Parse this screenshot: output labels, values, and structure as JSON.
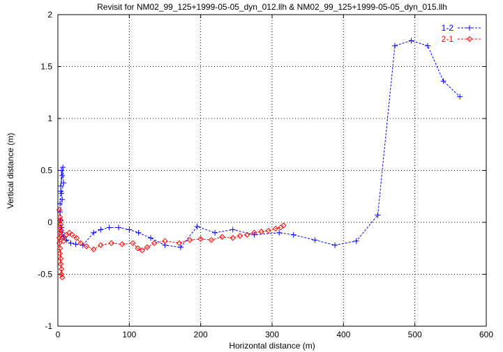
{
  "chart_data": {
    "type": "line",
    "title": "Revisit for NM02_99_125+1999-05-05_dyn_012.llh & NM02_99_125+1999-05-05_dyn_015.llh",
    "xlabel": "Horizontal distance (m)",
    "ylabel": "Vertical distance (m)",
    "xlim": [
      0,
      600
    ],
    "ylim": [
      -1,
      2
    ],
    "xticks": [
      0,
      100,
      200,
      300,
      400,
      500,
      600
    ],
    "yticks": [
      -1,
      -0.5,
      0,
      0.5,
      1,
      1.5,
      2
    ],
    "xtick_labels": [
      "0",
      "100",
      "200",
      "300",
      "400",
      "500",
      "600"
    ],
    "ytick_labels": [
      "-1",
      "-0.5",
      "0",
      "0.5",
      "1",
      "1.5",
      "2"
    ],
    "grid": true,
    "legend_position": "top-right",
    "series": [
      {
        "name": "1-2",
        "color": "#0000ff",
        "marker": "plus",
        "line": "dashed",
        "points": [
          [
            3,
            0.18
          ],
          [
            4,
            0.3
          ],
          [
            5,
            0.5
          ],
          [
            6,
            0.45
          ],
          [
            4,
            0.35
          ],
          [
            7,
            0.53
          ],
          [
            8,
            0.38
          ],
          [
            5,
            0.28
          ],
          [
            6,
            0.22
          ],
          [
            3,
            0.1
          ],
          [
            4,
            0.02
          ],
          [
            5,
            -0.05
          ],
          [
            6,
            -0.1
          ],
          [
            8,
            -0.14
          ],
          [
            12,
            -0.17
          ],
          [
            18,
            -0.2
          ],
          [
            25,
            -0.21
          ],
          [
            35,
            -0.22
          ],
          [
            50,
            -0.1
          ],
          [
            60,
            -0.07
          ],
          [
            72,
            -0.05
          ],
          [
            85,
            -0.05
          ],
          [
            100,
            -0.07
          ],
          [
            113,
            -0.1
          ],
          [
            130,
            -0.15
          ],
          [
            150,
            -0.22
          ],
          [
            172,
            -0.24
          ],
          [
            195,
            -0.04
          ],
          [
            220,
            -0.1
          ],
          [
            245,
            -0.07
          ],
          [
            275,
            -0.12
          ],
          [
            310,
            -0.1
          ],
          [
            330,
            -0.12
          ],
          [
            360,
            -0.17
          ],
          [
            388,
            -0.22
          ],
          [
            418,
            -0.18
          ],
          [
            448,
            0.07
          ],
          [
            472,
            1.7
          ],
          [
            495,
            1.75
          ],
          [
            518,
            1.7
          ],
          [
            540,
            1.36
          ],
          [
            563,
            1.21
          ]
        ]
      },
      {
        "name": "2-1",
        "color": "#ff0000",
        "marker": "diamond",
        "line": "dashed",
        "points": [
          [
            2,
            0.12
          ],
          [
            3,
            0.05
          ],
          [
            4,
            -0.02
          ],
          [
            3,
            -0.1
          ],
          [
            2,
            -0.2
          ],
          [
            3,
            -0.3
          ],
          [
            4,
            -0.4
          ],
          [
            5,
            -0.5
          ],
          [
            6,
            -0.53
          ],
          [
            5,
            -0.45
          ],
          [
            4,
            -0.35
          ],
          [
            3,
            -0.25
          ],
          [
            2,
            -0.15
          ],
          [
            3,
            -0.05
          ],
          [
            4,
            0.02
          ],
          [
            5,
            -0.08
          ],
          [
            6,
            -0.15
          ],
          [
            8,
            -0.18
          ],
          [
            12,
            -0.12
          ],
          [
            16,
            -0.1
          ],
          [
            20,
            -0.12
          ],
          [
            26,
            -0.15
          ],
          [
            32,
            -0.2
          ],
          [
            40,
            -0.23
          ],
          [
            50,
            -0.26
          ],
          [
            60,
            -0.22
          ],
          [
            75,
            -0.2
          ],
          [
            90,
            -0.21
          ],
          [
            105,
            -0.2
          ],
          [
            112,
            -0.25
          ],
          [
            118,
            -0.27
          ],
          [
            125,
            -0.24
          ],
          [
            135,
            -0.2
          ],
          [
            150,
            -0.18
          ],
          [
            170,
            -0.2
          ],
          [
            185,
            -0.17
          ],
          [
            200,
            -0.16
          ],
          [
            215,
            -0.17
          ],
          [
            230,
            -0.14
          ],
          [
            245,
            -0.15
          ],
          [
            255,
            -0.13
          ],
          [
            265,
            -0.12
          ],
          [
            275,
            -0.1
          ],
          [
            285,
            -0.09
          ],
          [
            295,
            -0.08
          ],
          [
            305,
            -0.06
          ],
          [
            312,
            -0.05
          ],
          [
            316,
            -0.03
          ]
        ]
      }
    ]
  }
}
